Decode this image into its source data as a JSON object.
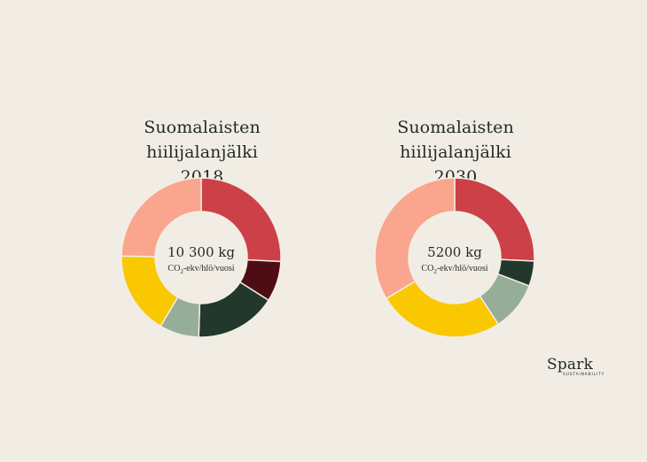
{
  "charts": [
    {
      "title_line1": "Suomalaisten hiilijalanjälki",
      "title_line2": "2018",
      "center_value": "10 300 kg",
      "center_unit_pre": "CO",
      "center_unit_sub": "2",
      "center_unit_post": "-ekv/hlö/vuosi"
    },
    {
      "title_line1": "Suomalaisten hiilijalanjälki",
      "title_line2": "2030",
      "center_value": "5200 kg",
      "center_unit_pre": "CO",
      "center_unit_sub": "2",
      "center_unit_post": "-ekv/hlö/vuosi"
    }
  ],
  "chart_data": [
    {
      "type": "pie",
      "title": "Suomalaisten hiilijalanjälki 2018",
      "categories": [
        "segment-1",
        "segment-2",
        "segment-3",
        "segment-4",
        "segment-5",
        "segment-6"
      ],
      "values": [
        25.8,
        8.2,
        16.5,
        8.0,
        16.8,
        24.7
      ],
      "colors": [
        "#cc4147",
        "#4e0d14",
        "#22382c",
        "#96ad99",
        "#f9c800",
        "#faa58d"
      ]
    },
    {
      "type": "pie",
      "title": "Suomalaisten hiilijalanjälki 2030",
      "categories": [
        "segment-1",
        "segment-2",
        "segment-3",
        "segment-4",
        "segment-5",
        "segment-6"
      ],
      "values": [
        25.7,
        0,
        5.1,
        10.0,
        25.6,
        33.6
      ],
      "colors": [
        "#cc4147",
        "#4e0d14",
        "#22382c",
        "#96ad99",
        "#f9c800",
        "#faa58d"
      ]
    }
  ],
  "brand": {
    "name": "Spark",
    "sub": "SUSTAINABILITY"
  }
}
